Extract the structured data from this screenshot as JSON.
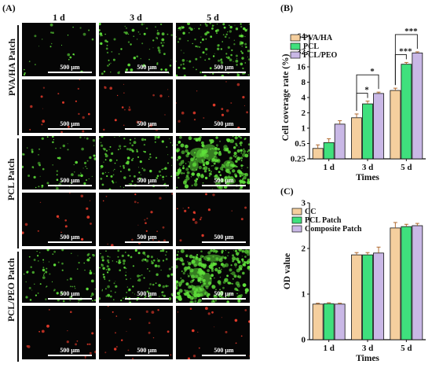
{
  "panels": {
    "a": "(A)",
    "b": "(B)",
    "c": "(C)"
  },
  "micrographs": {
    "columns": [
      "1 d",
      "3 d",
      "5 d"
    ],
    "groups": [
      "PVA/HA Patch",
      "PCL Patch",
      "PCL/PEO Patch"
    ],
    "scale_label": "500 μm",
    "cells": [
      {
        "group": "PVA/HA Patch",
        "stain": "green",
        "day": "1 d",
        "density": 0.08
      },
      {
        "group": "PVA/HA Patch",
        "stain": "green",
        "day": "3 d",
        "density": 0.3
      },
      {
        "group": "PVA/HA Patch",
        "stain": "green",
        "day": "5 d",
        "density": 0.55
      },
      {
        "group": "PVA/HA Patch",
        "stain": "red",
        "day": "1 d",
        "density": 0.05
      },
      {
        "group": "PVA/HA Patch",
        "stain": "red",
        "day": "3 d",
        "density": 0.06
      },
      {
        "group": "PVA/HA Patch",
        "stain": "red",
        "day": "5 d",
        "density": 0.05
      },
      {
        "group": "PCL Patch",
        "stain": "green",
        "day": "1 d",
        "density": 0.25
      },
      {
        "group": "PCL Patch",
        "stain": "green",
        "day": "3 d",
        "density": 0.45
      },
      {
        "group": "PCL Patch",
        "stain": "green",
        "day": "5 d",
        "density": 0.95
      },
      {
        "group": "PCL Patch",
        "stain": "red",
        "day": "1 d",
        "density": 0.04
      },
      {
        "group": "PCL Patch",
        "stain": "red",
        "day": "3 d",
        "density": 0.06
      },
      {
        "group": "PCL Patch",
        "stain": "red",
        "day": "5 d",
        "density": 0.05
      },
      {
        "group": "PCL/PEO Patch",
        "stain": "green",
        "day": "1 d",
        "density": 0.3
      },
      {
        "group": "PCL/PEO Patch",
        "stain": "green",
        "day": "3 d",
        "density": 0.5
      },
      {
        "group": "PCL/PEO Patch",
        "stain": "green",
        "day": "5 d",
        "density": 1.0
      },
      {
        "group": "PCL/PEO Patch",
        "stain": "red",
        "day": "1 d",
        "density": 0.05
      },
      {
        "group": "PCL/PEO Patch",
        "stain": "red",
        "day": "3 d",
        "density": 0.06
      },
      {
        "group": "PCL/PEO Patch",
        "stain": "red",
        "day": "5 d",
        "density": 0.05
      }
    ]
  },
  "colors": {
    "series1": "#f5cf9e",
    "series2": "#3fe07d",
    "series3": "#c9b8e6",
    "live": "#5fe03a",
    "dead": "#e23a2a",
    "ink": "#111111"
  },
  "chart_data": [
    {
      "type": "bar",
      "panel": "B",
      "categories": [
        "1 d",
        "3 d",
        "5 d"
      ],
      "series": [
        {
          "name": "PVA/HA",
          "values": [
            0.4,
            1.6,
            5.5
          ],
          "errors": [
            0.07,
            0.3,
            0.6
          ]
        },
        {
          "name": "PCL",
          "values": [
            0.52,
            3.0,
            18.0
          ],
          "errors": [
            0.1,
            0.4,
            1.5
          ]
        },
        {
          "name": "PCL/PEO",
          "values": [
            1.2,
            4.8,
            30.0
          ],
          "errors": [
            0.2,
            0.3,
            1.5
          ]
        }
      ],
      "xlabel": "Times",
      "ylabel": "Cell coverage rate (%)",
      "yscale": "log2",
      "ylim": [
        0.25,
        64
      ],
      "yticks": [
        "0.25",
        "0.5",
        "1",
        "2",
        "4",
        "8",
        "16",
        "32",
        "64"
      ],
      "legend": "top-left",
      "significance": [
        {
          "category": "3 d",
          "from": "PVA/HA",
          "to": "PCL",
          "label": "*"
        },
        {
          "category": "3 d",
          "from": "PVA/HA",
          "to": "PCL/PEO",
          "label": "*"
        },
        {
          "category": "5 d",
          "from": "PVA/HA",
          "to": "PCL",
          "label": "***"
        },
        {
          "category": "5 d",
          "from": "PVA/HA",
          "to": "PCL/PEO",
          "label": "***"
        }
      ]
    },
    {
      "type": "bar",
      "panel": "C",
      "categories": [
        "1 d",
        "3 d",
        "5 d"
      ],
      "series": [
        {
          "name": "CC",
          "values": [
            0.78,
            1.86,
            2.45
          ],
          "errors": [
            0.02,
            0.05,
            0.12
          ]
        },
        {
          "name": "PCL Patch",
          "values": [
            0.79,
            1.86,
            2.48
          ],
          "errors": [
            0.02,
            0.05,
            0.05
          ]
        },
        {
          "name": "Composite Patch",
          "values": [
            0.78,
            1.9,
            2.5
          ],
          "errors": [
            0.02,
            0.13,
            0.05
          ]
        }
      ],
      "xlabel": "Times",
      "ylabel": "OD value",
      "ylim": [
        0,
        3
      ],
      "yticks": [
        "0",
        "1",
        "2",
        "3"
      ],
      "legend": "top-left"
    }
  ]
}
